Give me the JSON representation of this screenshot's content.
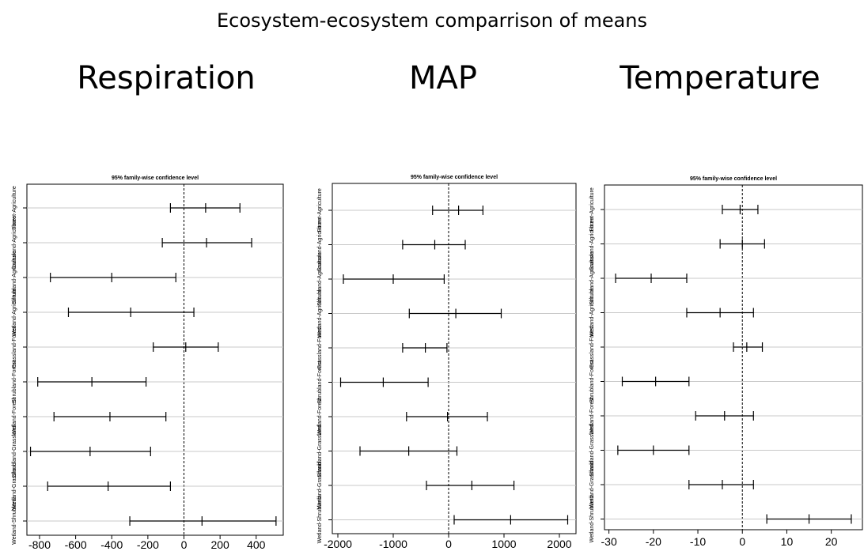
{
  "title": "Ecosystem-ecosystem comparrison of means",
  "chart_data": [
    {
      "type": "interval",
      "panel_title": "Respiration",
      "subtitle": "95% family-wise confidence level",
      "xlim": [
        -870,
        550
      ],
      "xticks": [
        -800,
        -600,
        -400,
        -200,
        0,
        200,
        400
      ],
      "reference_line": 0,
      "categories": [
        "Forest-Agriculture",
        "Grassland-Agriculture",
        "Shrubland-Agriculture",
        "Wetland-Agriculture",
        "Grassland-Forest",
        "Shrubland-Forest",
        "Wetland-Forest",
        "Shrubland-Grassland",
        "Wetland-Grassland",
        "Wetland-Shrubland"
      ],
      "intervals": [
        {
          "lwr": -75,
          "diff": 120,
          "upr": 310
        },
        {
          "lwr": -120,
          "diff": 125,
          "upr": 375
        },
        {
          "lwr": -740,
          "diff": -400,
          "upr": -45
        },
        {
          "lwr": -640,
          "diff": -295,
          "upr": 55
        },
        {
          "lwr": -170,
          "diff": 10,
          "upr": 190
        },
        {
          "lwr": -810,
          "diff": -510,
          "upr": -210
        },
        {
          "lwr": -720,
          "diff": -410,
          "upr": -100
        },
        {
          "lwr": -850,
          "diff": -520,
          "upr": -185
        },
        {
          "lwr": -755,
          "diff": -420,
          "upr": -75
        },
        {
          "lwr": -300,
          "diff": 100,
          "upr": 510
        }
      ]
    },
    {
      "type": "interval",
      "panel_title": "MAP",
      "subtitle": "95% family-wise confidence level",
      "xlim": [
        -2100,
        2300
      ],
      "xticks": [
        -2000,
        -1000,
        0,
        1000,
        2000
      ],
      "reference_line": 0,
      "categories": [
        "Forest-Agriculture",
        "Grassland-Agriculture",
        "Shrubland-Agriculture",
        "Wetland-Agriculture",
        "Grassland-Forest",
        "Shrubland-Forest",
        "Wetland-Forest",
        "Shrubland-Grassland",
        "Wetland-Grassland",
        "Wetland-Shrubland"
      ],
      "intervals": [
        {
          "lwr": -290,
          "diff": 180,
          "upr": 620
        },
        {
          "lwr": -830,
          "diff": -250,
          "upr": 300
        },
        {
          "lwr": -1900,
          "diff": -1000,
          "upr": -80
        },
        {
          "lwr": -710,
          "diff": 130,
          "upr": 950
        },
        {
          "lwr": -830,
          "diff": -420,
          "upr": -30
        },
        {
          "lwr": -1950,
          "diff": -1180,
          "upr": -370
        },
        {
          "lwr": -760,
          "diff": -20,
          "upr": 700
        },
        {
          "lwr": -1600,
          "diff": -720,
          "upr": 150
        },
        {
          "lwr": -400,
          "diff": 420,
          "upr": 1180
        },
        {
          "lwr": 100,
          "diff": 1120,
          "upr": 2150
        }
      ]
    },
    {
      "type": "interval",
      "panel_title": "Temperature",
      "subtitle": "95% family-wise confidence level",
      "xlim": [
        -31,
        27
      ],
      "xticks": [
        -30,
        -20,
        -10,
        0,
        10,
        20
      ],
      "reference_line": 0,
      "categories": [
        "Forest-Agriculture",
        "Grassland-Agriculture",
        "Shrubland-Agriculture",
        "Wetland-Agriculture",
        "Grassland-Forest",
        "Shrubland-Forest",
        "Wetland-Forest",
        "Shrubland-Grassland",
        "Wetland-Grassland",
        "Wetland-Shrubland"
      ],
      "intervals": [
        {
          "lwr": -4.5,
          "diff": -0.5,
          "upr": 3.5
        },
        {
          "lwr": -5,
          "diff": 0,
          "upr": 5
        },
        {
          "lwr": -28.5,
          "diff": -20.5,
          "upr": -12.5
        },
        {
          "lwr": -12.5,
          "diff": -5,
          "upr": 2.5
        },
        {
          "lwr": -2,
          "diff": 1,
          "upr": 4.5
        },
        {
          "lwr": -27,
          "diff": -19.5,
          "upr": -12
        },
        {
          "lwr": -10.5,
          "diff": -4,
          "upr": 2.5
        },
        {
          "lwr": -28,
          "diff": -20,
          "upr": -12
        },
        {
          "lwr": -12,
          "diff": -4.5,
          "upr": 2.5
        },
        {
          "lwr": 5.5,
          "diff": 15,
          "upr": 24.5
        }
      ]
    }
  ]
}
